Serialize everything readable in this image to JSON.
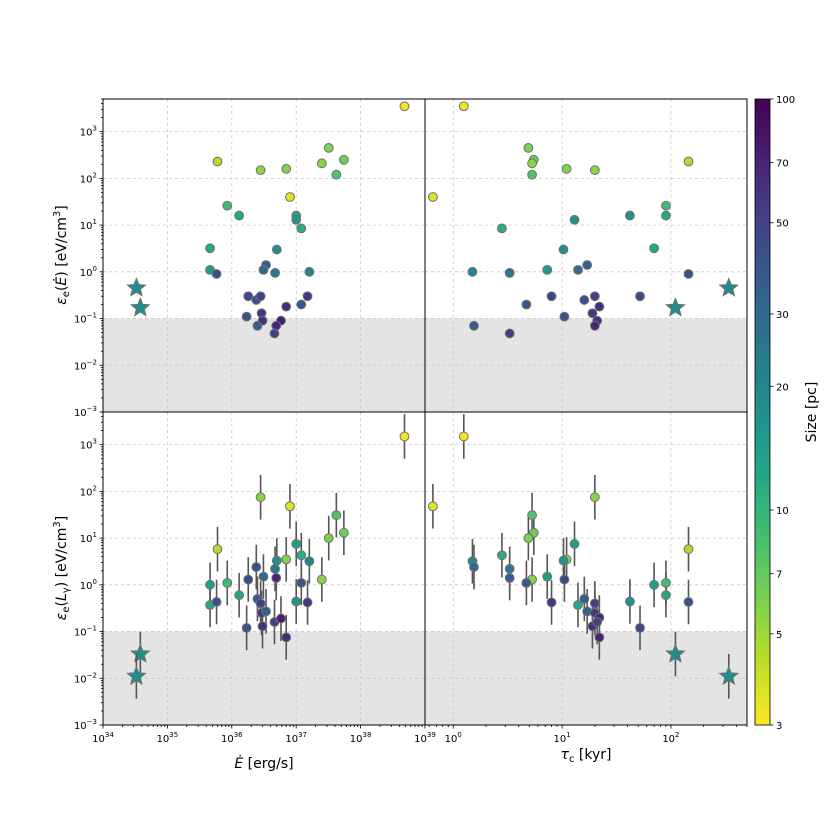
{
  "chart_data": [
    {
      "type": "scatter",
      "panel": "top-left",
      "xlabel": "Ė [erg/s]",
      "ylabel": "εe(Ė) [eV/cm³]",
      "x_scale": "log",
      "y_scale": "log",
      "xlim": [
        1e+34,
        1e+39
      ],
      "ylim": [
        0.001,
        5000
      ],
      "shaded_region": [
        0.001,
        0.1
      ],
      "points": [
        {
          "x": 4.8e+38,
          "y": 3500,
          "size": 3.2
        },
        {
          "x": 6e+35,
          "y": 230,
          "size": 4.5
        },
        {
          "x": 2.8e+36,
          "y": 150,
          "size": 5.5
        },
        {
          "x": 7e+36,
          "y": 160,
          "size": 5.8
        },
        {
          "x": 3.2e+37,
          "y": 450,
          "size": 6.0
        },
        {
          "x": 2.5e+37,
          "y": 210,
          "size": 5.5
        },
        {
          "x": 5.5e+37,
          "y": 250,
          "size": 6.5
        },
        {
          "x": 4.2e+37,
          "y": 120,
          "size": 8.0
        },
        {
          "x": 8.5e+35,
          "y": 26,
          "size": 9.0
        },
        {
          "x": 8e+36,
          "y": 40,
          "size": 3.5
        },
        {
          "x": 1.3e+36,
          "y": 16,
          "size": 12
        },
        {
          "x": 1e+37,
          "y": 16,
          "size": 14
        },
        {
          "x": 1e+37,
          "y": 13,
          "size": 16
        },
        {
          "x": 1.2e+37,
          "y": 8.5,
          "size": 11
        },
        {
          "x": 4.6e+35,
          "y": 3.2,
          "size": 12
        },
        {
          "x": 5e+36,
          "y": 3.0,
          "size": 17
        },
        {
          "x": 4.6e+35,
          "y": 1.1,
          "size": 14
        },
        {
          "x": 5.8e+35,
          "y": 0.9,
          "size": 40
        },
        {
          "x": 3.4e+36,
          "y": 1.4,
          "size": 35
        },
        {
          "x": 3.1e+36,
          "y": 1.1,
          "size": 30
        },
        {
          "x": 4.7e+36,
          "y": 0.95,
          "size": 25
        },
        {
          "x": 1.6e+37,
          "y": 1.0,
          "size": 20
        },
        {
          "x": 1.8e+36,
          "y": 0.3,
          "size": 45
        },
        {
          "x": 2.4e+36,
          "y": 0.25,
          "size": 42
        },
        {
          "x": 2.8e+36,
          "y": 0.3,
          "size": 50
        },
        {
          "x": 1.2e+37,
          "y": 0.2,
          "size": 38
        },
        {
          "x": 1.5e+37,
          "y": 0.3,
          "size": 55
        },
        {
          "x": 7e+36,
          "y": 0.18,
          "size": 62
        },
        {
          "x": 1.7e+36,
          "y": 0.11,
          "size": 40
        },
        {
          "x": 2.9e+36,
          "y": 0.13,
          "size": 55
        },
        {
          "x": 3e+36,
          "y": 0.09,
          "size": 60
        },
        {
          "x": 5.8e+36,
          "y": 0.09,
          "size": 75
        },
        {
          "x": 2.5e+36,
          "y": 0.07,
          "size": 35
        },
        {
          "x": 4.9e+36,
          "y": 0.07,
          "size": 70
        },
        {
          "x": 4.6e+36,
          "y": 0.048,
          "size": 50
        }
      ],
      "stars": [
        {
          "x": 3.3e+34,
          "y": 0.45,
          "size": 18
        },
        {
          "x": 3.8e+34,
          "y": 0.17,
          "size": 18
        }
      ]
    },
    {
      "type": "scatter",
      "panel": "top-right",
      "xlabel": "τc [kyr]",
      "ylabel": "εe(Ė) [eV/cm³]",
      "x_scale": "log",
      "y_scale": "log",
      "xlim": [
        0.55,
        500
      ],
      "ylim": [
        0.001,
        5000
      ],
      "shaded_region": [
        0.001,
        0.1
      ],
      "points": [
        {
          "x": 1.25,
          "y": 3500,
          "size": 3.2
        },
        {
          "x": 0.65,
          "y": 40,
          "size": 3.5
        },
        {
          "x": 4.9,
          "y": 450,
          "size": 6.0
        },
        {
          "x": 5.5,
          "y": 250,
          "size": 6.5
        },
        {
          "x": 5.3,
          "y": 210,
          "size": 5.5
        },
        {
          "x": 5.3,
          "y": 120,
          "size": 8.0
        },
        {
          "x": 11,
          "y": 160,
          "size": 5.8
        },
        {
          "x": 20,
          "y": 150,
          "size": 5.5
        },
        {
          "x": 145,
          "y": 230,
          "size": 4.5
        },
        {
          "x": 90,
          "y": 26,
          "size": 9.0
        },
        {
          "x": 90,
          "y": 16,
          "size": 12
        },
        {
          "x": 42,
          "y": 16,
          "size": 17
        },
        {
          "x": 13,
          "y": 13,
          "size": 16
        },
        {
          "x": 2.8,
          "y": 8.5,
          "size": 11
        },
        {
          "x": 10.3,
          "y": 3.0,
          "size": 17
        },
        {
          "x": 70,
          "y": 3.2,
          "size": 12
        },
        {
          "x": 1.5,
          "y": 1.0,
          "size": 20
        },
        {
          "x": 3.3,
          "y": 0.95,
          "size": 25
        },
        {
          "x": 7.3,
          "y": 1.1,
          "size": 14
        },
        {
          "x": 14,
          "y": 1.1,
          "size": 30
        },
        {
          "x": 17,
          "y": 1.4,
          "size": 35
        },
        {
          "x": 145,
          "y": 0.9,
          "size": 40
        },
        {
          "x": 8.0,
          "y": 0.3,
          "size": 45
        },
        {
          "x": 16,
          "y": 0.25,
          "size": 42
        },
        {
          "x": 20,
          "y": 0.3,
          "size": 50
        },
        {
          "x": 52,
          "y": 0.3,
          "size": 45
        },
        {
          "x": 4.7,
          "y": 0.2,
          "size": 38
        },
        {
          "x": 22,
          "y": 0.18,
          "size": 62
        },
        {
          "x": 19,
          "y": 0.13,
          "size": 55
        },
        {
          "x": 10.5,
          "y": 0.11,
          "size": 40
        },
        {
          "x": 21,
          "y": 0.09,
          "size": 60
        },
        {
          "x": 20,
          "y": 0.07,
          "size": 70
        },
        {
          "x": 1.55,
          "y": 0.07,
          "size": 35
        },
        {
          "x": 3.3,
          "y": 0.048,
          "size": 50
        }
      ],
      "stars": [
        {
          "x": 110,
          "y": 0.17,
          "size": 18
        },
        {
          "x": 340,
          "y": 0.45,
          "size": 18
        }
      ]
    },
    {
      "type": "scatter",
      "panel": "bottom-left",
      "xlabel": "Ė [erg/s]",
      "ylabel": "εe(Lγ) [eV/cm³]",
      "x_scale": "log",
      "y_scale": "log",
      "xlim": [
        1e+34,
        1e+39
      ],
      "ylim": [
        0.001,
        5000
      ],
      "shaded_region": [
        0.001,
        0.1
      ],
      "error_bar_factor": 3,
      "points": [
        {
          "x": 4.8e+38,
          "y": 1500,
          "size": 3.2
        },
        {
          "x": 6e+35,
          "y": 5.8,
          "size": 4.5
        },
        {
          "x": 2.8e+36,
          "y": 75,
          "size": 5.5
        },
        {
          "x": 8e+36,
          "y": 48,
          "size": 3.5
        },
        {
          "x": 7e+36,
          "y": 3.5,
          "size": 5.8
        },
        {
          "x": 4.2e+37,
          "y": 31,
          "size": 8.0
        },
        {
          "x": 5.5e+37,
          "y": 13,
          "size": 6.5
        },
        {
          "x": 3.2e+37,
          "y": 10,
          "size": 6.0
        },
        {
          "x": 2.5e+37,
          "y": 1.3,
          "size": 5.5
        },
        {
          "x": 1e+37,
          "y": 7.5,
          "size": 14
        },
        {
          "x": 1.2e+37,
          "y": 4.3,
          "size": 11
        },
        {
          "x": 1.6e+37,
          "y": 3.2,
          "size": 20
        },
        {
          "x": 4.6e+35,
          "y": 1.0,
          "size": 14
        },
        {
          "x": 8.5e+35,
          "y": 1.1,
          "size": 9.0
        },
        {
          "x": 4.6e+35,
          "y": 0.37,
          "size": 12
        },
        {
          "x": 5.8e+35,
          "y": 0.43,
          "size": 40
        },
        {
          "x": 1.3e+36,
          "y": 0.6,
          "size": 12
        },
        {
          "x": 1.8e+36,
          "y": 1.3,
          "size": 45
        },
        {
          "x": 2.4e+36,
          "y": 2.4,
          "size": 42
        },
        {
          "x": 3.1e+36,
          "y": 1.5,
          "size": 30
        },
        {
          "x": 4.7e+36,
          "y": 2.2,
          "size": 25
        },
        {
          "x": 5e+36,
          "y": 3.3,
          "size": 17
        },
        {
          "x": 4.9e+36,
          "y": 1.4,
          "size": 70
        },
        {
          "x": 2.5e+36,
          "y": 0.5,
          "size": 35
        },
        {
          "x": 2.8e+36,
          "y": 0.4,
          "size": 50
        },
        {
          "x": 2.9e+36,
          "y": 0.25,
          "size": 55
        },
        {
          "x": 3.4e+36,
          "y": 0.27,
          "size": 35
        },
        {
          "x": 1e+37,
          "y": 0.44,
          "size": 16
        },
        {
          "x": 1.2e+37,
          "y": 1.1,
          "size": 38
        },
        {
          "x": 1.5e+37,
          "y": 0.42,
          "size": 55
        },
        {
          "x": 1.7e+36,
          "y": 0.12,
          "size": 40
        },
        {
          "x": 3e+36,
          "y": 0.13,
          "size": 60
        },
        {
          "x": 4.6e+36,
          "y": 0.16,
          "size": 50
        },
        {
          "x": 5.8e+36,
          "y": 0.19,
          "size": 75
        },
        {
          "x": 7e+36,
          "y": 0.075,
          "size": 62
        }
      ],
      "stars": [
        {
          "x": 3.8e+34,
          "y": 0.033,
          "size": 18
        },
        {
          "x": 3.3e+34,
          "y": 0.011,
          "size": 18
        }
      ]
    },
    {
      "type": "scatter",
      "panel": "bottom-right",
      "xlabel": "τc [kyr]",
      "ylabel": "εe(Lγ) [eV/cm³]",
      "x_scale": "log",
      "y_scale": "log",
      "xlim": [
        0.55,
        500
      ],
      "ylim": [
        0.001,
        5000
      ],
      "shaded_region": [
        0.001,
        0.1
      ],
      "error_bar_factor": 3,
      "points": [
        {
          "x": 1.25,
          "y": 1500,
          "size": 3.2
        },
        {
          "x": 0.65,
          "y": 48,
          "size": 3.5
        },
        {
          "x": 20,
          "y": 75,
          "size": 5.5
        },
        {
          "x": 5.3,
          "y": 31,
          "size": 8.0
        },
        {
          "x": 5.5,
          "y": 13,
          "size": 6.5
        },
        {
          "x": 4.9,
          "y": 10,
          "size": 6.0
        },
        {
          "x": 13,
          "y": 7.5,
          "size": 14
        },
        {
          "x": 2.8,
          "y": 4.3,
          "size": 11
        },
        {
          "x": 11,
          "y": 3.5,
          "size": 5.8
        },
        {
          "x": 1.5,
          "y": 3.2,
          "size": 20
        },
        {
          "x": 10.3,
          "y": 3.3,
          "size": 17
        },
        {
          "x": 145,
          "y": 5.8,
          "size": 4.5
        },
        {
          "x": 1.55,
          "y": 2.4,
          "size": 30
        },
        {
          "x": 3.3,
          "y": 2.2,
          "size": 25
        },
        {
          "x": 3.3,
          "y": 1.4,
          "size": 35
        },
        {
          "x": 7.3,
          "y": 1.5,
          "size": 14
        },
        {
          "x": 5.3,
          "y": 1.3,
          "size": 5.5
        },
        {
          "x": 10.5,
          "y": 1.3,
          "size": 45
        },
        {
          "x": 4.7,
          "y": 1.1,
          "size": 38
        },
        {
          "x": 70,
          "y": 1.0,
          "size": 14
        },
        {
          "x": 90,
          "y": 1.1,
          "size": 9.0
        },
        {
          "x": 90,
          "y": 0.6,
          "size": 12
        },
        {
          "x": 8.0,
          "y": 0.42,
          "size": 55
        },
        {
          "x": 14,
          "y": 0.37,
          "size": 12
        },
        {
          "x": 16,
          "y": 0.5,
          "size": 35
        },
        {
          "x": 17,
          "y": 0.27,
          "size": 35
        },
        {
          "x": 20,
          "y": 0.4,
          "size": 50
        },
        {
          "x": 20,
          "y": 0.25,
          "size": 55
        },
        {
          "x": 22,
          "y": 0.2,
          "size": 62
        },
        {
          "x": 19,
          "y": 0.13,
          "size": 60
        },
        {
          "x": 21,
          "y": 0.16,
          "size": 50
        },
        {
          "x": 42,
          "y": 0.44,
          "size": 16
        },
        {
          "x": 145,
          "y": 0.43,
          "size": 40
        },
        {
          "x": 52,
          "y": 0.12,
          "size": 45
        },
        {
          "x": 22,
          "y": 0.075,
          "size": 70
        }
      ],
      "stars": [
        {
          "x": 110,
          "y": 0.033,
          "size": 18
        },
        {
          "x": 340,
          "y": 0.011,
          "size": 18
        }
      ]
    }
  ],
  "colorbar": {
    "label": "Size [pc]",
    "scale": "log",
    "range": [
      3,
      100
    ],
    "ticks": [
      3,
      5,
      7,
      10,
      20,
      30,
      50,
      70,
      100
    ],
    "tick_labels": [
      "3",
      "5",
      "7",
      "10",
      "20",
      "30",
      "50",
      "70",
      "100"
    ],
    "colormap": "viridis_r"
  },
  "axis_text": {
    "y_ticks_top": [
      "10−3",
      "10−2",
      "10−1",
      "100",
      "101",
      "102",
      "103"
    ],
    "x_ticks_left": [
      "1034",
      "1035",
      "1036",
      "1037",
      "1038",
      "1039"
    ],
    "x_ticks_right": [
      "100",
      "101",
      "102"
    ],
    "ylabel_top": "εe(Ė) [eV/cm3]",
    "ylabel_bottom": "εe(Lγ) [eV/cm3]",
    "xlabel_left": "Ė [erg/s]",
    "xlabel_right": "τc [kyr]"
  },
  "colors": {
    "shade": "#e4e4e4",
    "grid": "#c8c8c8",
    "errorbar": "#555555",
    "marker_edge": "#707070"
  }
}
